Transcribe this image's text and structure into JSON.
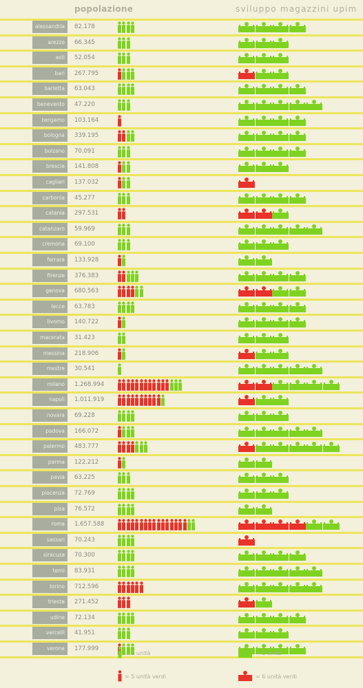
{
  "headers": {
    "population": "popolazione",
    "upim": "sviluppo magazzini upim"
  },
  "colors": {
    "green": "#7ed321",
    "red": "#e8322a",
    "line": "#ece55a",
    "label_bg": "#a9ad9f"
  },
  "legend": {
    "person_unit": "= 1 unità",
    "person_five": "= 5 unità verdi",
    "store_unit": "= 1 unità",
    "store_six": "= 6 unità verdi"
  },
  "chart_data": {
    "type": "table",
    "columns": [
      "popolazione",
      "sviluppo magazzini upim"
    ],
    "rows": [
      {
        "city": "alessandria",
        "population": "82.178",
        "people_red": 0,
        "people_green": 4,
        "stores_red": 0,
        "stores_green": 4
      },
      {
        "city": "arezzo",
        "population": "66.345",
        "people_red": 0,
        "people_green": 3,
        "stores_red": 0,
        "stores_green": 3
      },
      {
        "city": "asti",
        "population": "52.054",
        "people_red": 0,
        "people_green": 3,
        "stores_red": 0,
        "stores_green": 3
      },
      {
        "city": "bari",
        "population": "267.795",
        "people_red": 1,
        "people_green": 3,
        "stores_red": 1,
        "stores_green": 2
      },
      {
        "city": "barletta",
        "population": "63.043",
        "people_red": 0,
        "people_green": 4,
        "stores_red": 0,
        "stores_green": 4
      },
      {
        "city": "benevento",
        "population": "47.220",
        "people_red": 0,
        "people_green": 3,
        "stores_red": 0,
        "stores_green": 5
      },
      {
        "city": "bergamo",
        "population": "103.164",
        "people_red": 1,
        "people_green": 0,
        "stores_red": 0,
        "stores_green": 4
      },
      {
        "city": "bologna",
        "population": "339.195",
        "people_red": 2,
        "people_green": 2,
        "stores_red": 0,
        "stores_green": 4
      },
      {
        "city": "bolzano",
        "population": "70.091",
        "people_red": 0,
        "people_green": 3,
        "stores_red": 0,
        "stores_green": 4
      },
      {
        "city": "brescia",
        "population": "141.808",
        "people_red": 1,
        "people_green": 2,
        "stores_red": 0,
        "stores_green": 3
      },
      {
        "city": "cagliari",
        "population": "137.032",
        "people_red": 1,
        "people_green": 2,
        "stores_red": 1,
        "stores_green": 0
      },
      {
        "city": "carbonia",
        "population": "45.277",
        "people_red": 0,
        "people_green": 3,
        "stores_red": 0,
        "stores_green": 4
      },
      {
        "city": "catania",
        "population": "297.531",
        "people_red": 2,
        "people_green": 0,
        "stores_red": 2,
        "stores_green": 1
      },
      {
        "city": "catanzaro",
        "population": "59.969",
        "people_red": 0,
        "people_green": 3,
        "stores_red": 0,
        "stores_green": 5
      },
      {
        "city": "cremona",
        "population": "69.100",
        "people_red": 0,
        "people_green": 3,
        "stores_red": 0,
        "stores_green": 3
      },
      {
        "city": "ferrara",
        "population": "133.928",
        "people_red": 1,
        "people_green": 1,
        "stores_red": 0,
        "stores_green": 2
      },
      {
        "city": "firenze",
        "population": "376.383",
        "people_red": 2,
        "people_green": 3,
        "stores_red": 0,
        "stores_green": 4
      },
      {
        "city": "genova",
        "population": "680.563",
        "people_red": 4,
        "people_green": 2,
        "stores_red": 2,
        "stores_green": 2
      },
      {
        "city": "lecce",
        "population": "63.783",
        "people_red": 0,
        "people_green": 4,
        "stores_red": 0,
        "stores_green": 4
      },
      {
        "city": "livorno",
        "population": "140.722",
        "people_red": 1,
        "people_green": 1,
        "stores_red": 0,
        "stores_green": 4
      },
      {
        "city": "macerata",
        "population": "31.423",
        "people_red": 0,
        "people_green": 2,
        "stores_red": 0,
        "stores_green": 3
      },
      {
        "city": "messina",
        "population": "218.906",
        "people_red": 1,
        "people_green": 1,
        "stores_red": 1,
        "stores_green": 2
      },
      {
        "city": "mestre",
        "population": "30.541",
        "people_red": 0,
        "people_green": 1,
        "stores_red": 0,
        "stores_green": 5
      },
      {
        "city": "milano",
        "population": "1.268.994",
        "people_red": 12,
        "people_green": 3,
        "stores_red": 2,
        "stores_green": 4
      },
      {
        "city": "napoli",
        "population": "1.011.919",
        "people_red": 10,
        "people_green": 1,
        "stores_red": 1,
        "stores_green": 2
      },
      {
        "city": "novara",
        "population": "69.228",
        "people_red": 0,
        "people_green": 4,
        "stores_red": 0,
        "stores_green": 3
      },
      {
        "city": "padova",
        "population": "166.072",
        "people_red": 1,
        "people_green": 3,
        "stores_red": 0,
        "stores_green": 5
      },
      {
        "city": "palermo",
        "population": "483.777",
        "people_red": 4,
        "people_green": 3,
        "stores_red": 1,
        "stores_green": 5
      },
      {
        "city": "parma",
        "population": "122.212",
        "people_red": 1,
        "people_green": 1,
        "stores_red": 0,
        "stores_green": 2
      },
      {
        "city": "pavia",
        "population": "63.225",
        "people_red": 0,
        "people_green": 3,
        "stores_red": 0,
        "stores_green": 3
      },
      {
        "city": "piacenza",
        "population": "72.769",
        "people_red": 0,
        "people_green": 4,
        "stores_red": 0,
        "stores_green": 3
      },
      {
        "city": "pisa",
        "population": "76.572",
        "people_red": 0,
        "people_green": 4,
        "stores_red": 0,
        "stores_green": 2
      },
      {
        "city": "roma",
        "population": "1.657.588",
        "people_red": 16,
        "people_green": 2,
        "stores_red": 4,
        "stores_green": 2
      },
      {
        "city": "sassari",
        "population": "70.243",
        "people_red": 0,
        "people_green": 4,
        "stores_red": 1,
        "stores_green": 0
      },
      {
        "city": "siracusa",
        "population": "70.300",
        "people_red": 0,
        "people_green": 4,
        "stores_red": 0,
        "stores_green": 4
      },
      {
        "city": "terni",
        "population": "83.931",
        "people_red": 0,
        "people_green": 4,
        "stores_red": 0,
        "stores_green": 5
      },
      {
        "city": "torino",
        "population": "712.596",
        "people_red": 6,
        "people_green": 0,
        "stores_red": 0,
        "stores_green": 5
      },
      {
        "city": "trieste",
        "population": "271.452",
        "people_red": 3,
        "people_green": 0,
        "stores_red": 1,
        "stores_green": 1
      },
      {
        "city": "udine",
        "population": "72.134",
        "people_red": 0,
        "people_green": 4,
        "stores_red": 0,
        "stores_green": 4
      },
      {
        "city": "vercelli",
        "population": "41.951",
        "people_red": 0,
        "people_green": 3,
        "stores_red": 0,
        "stores_green": 3
      },
      {
        "city": "verona",
        "population": "177.999",
        "people_red": 1,
        "people_green": 3,
        "stores_red": 0,
        "stores_green": 4
      }
    ]
  }
}
